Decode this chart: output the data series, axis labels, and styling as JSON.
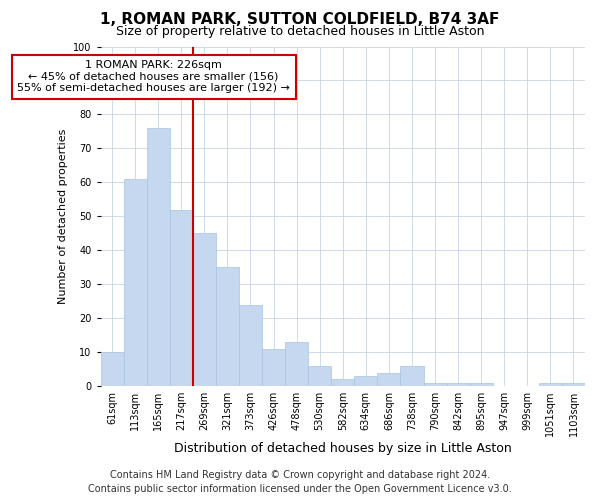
{
  "title": "1, ROMAN PARK, SUTTON COLDFIELD, B74 3AF",
  "subtitle": "Size of property relative to detached houses in Little Aston",
  "xlabel": "Distribution of detached houses by size in Little Aston",
  "ylabel": "Number of detached properties",
  "categories": [
    "61sqm",
    "113sqm",
    "165sqm",
    "217sqm",
    "269sqm",
    "321sqm",
    "373sqm",
    "426sqm",
    "478sqm",
    "530sqm",
    "582sqm",
    "634sqm",
    "686sqm",
    "738sqm",
    "790sqm",
    "842sqm",
    "895sqm",
    "947sqm",
    "999sqm",
    "1051sqm",
    "1103sqm"
  ],
  "values": [
    10,
    61,
    76,
    52,
    45,
    35,
    24,
    11,
    13,
    6,
    2,
    3,
    4,
    6,
    1,
    1,
    1,
    0,
    0,
    1,
    1
  ],
  "bar_color": "#c5d8f0",
  "bar_edge_color": "#a8c4e0",
  "vline_index": 3,
  "vline_color": "#cc0000",
  "ylim": [
    0,
    100
  ],
  "annotation_text": "1 ROMAN PARK: 226sqm\n← 45% of detached houses are smaller (156)\n55% of semi-detached houses are larger (192) →",
  "annotation_box_facecolor": "#ffffff",
  "annotation_box_edgecolor": "#cc0000",
  "annotation_fontsize": 8,
  "footer1": "Contains HM Land Registry data © Crown copyright and database right 2024.",
  "footer2": "Contains public sector information licensed under the Open Government Licence v3.0.",
  "bg_color": "#ffffff",
  "plot_bg_color": "#ffffff",
  "title_fontsize": 11,
  "subtitle_fontsize": 9,
  "xlabel_fontsize": 9,
  "ylabel_fontsize": 8,
  "footer_fontsize": 7,
  "tick_fontsize": 7,
  "grid_color": "#c8d4e8"
}
